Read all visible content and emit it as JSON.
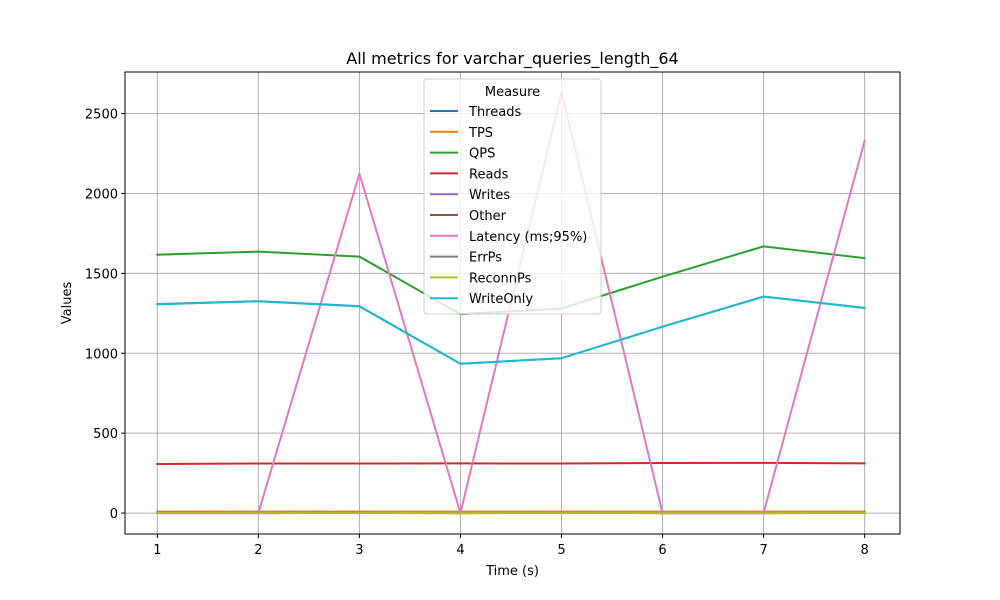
{
  "chart_data": {
    "type": "line",
    "title": "All metrics for varchar_queries_length_64",
    "xlabel": "Time (s)",
    "ylabel": "Values",
    "x": [
      1,
      2,
      3,
      4,
      5,
      6,
      7,
      8
    ],
    "xlim": [
      0.68,
      8.35
    ],
    "ylim": [
      -131,
      2760
    ],
    "xticks": [
      1,
      2,
      3,
      4,
      5,
      6,
      7,
      8
    ],
    "yticks": [
      0,
      500,
      1000,
      1500,
      2000,
      2500
    ],
    "grid": true,
    "legend": {
      "title": "Measure",
      "placement": "upper center"
    },
    "series": [
      {
        "name": "Threads",
        "color": "#1f77b4",
        "values": [
          8,
          8,
          8,
          8,
          8,
          8,
          8,
          8
        ]
      },
      {
        "name": "TPS",
        "color": "#ff7f0e",
        "values": [
          8,
          8,
          8,
          8,
          8,
          8,
          8,
          8
        ]
      },
      {
        "name": "QPS",
        "color": "#2ca02c",
        "values": [
          1617,
          1636,
          1605,
          1245,
          1280,
          1479,
          1669,
          1595
        ]
      },
      {
        "name": "Reads",
        "color": "#d62728",
        "values": [
          307,
          310,
          310,
          311,
          310,
          313,
          314,
          311
        ]
      },
      {
        "name": "Writes",
        "color": "#9467bd",
        "values": [
          1308,
          1326,
          1295,
          934,
          969,
          1166,
          1355,
          1284
        ]
      },
      {
        "name": "Other",
        "color": "#8c564b",
        "values": [
          3,
          1,
          2,
          0,
          1,
          0,
          0,
          1
        ]
      },
      {
        "name": "Latency (ms;95%)",
        "color": "#e377c2",
        "values": [
          0,
          0,
          2124,
          0,
          2633,
          0,
          0,
          2330
        ]
      },
      {
        "name": "ErrPs",
        "color": "#7f7f7f",
        "values": [
          2,
          0,
          1,
          0,
          1,
          0,
          0,
          1
        ]
      },
      {
        "name": "ReconnPs",
        "color": "#bcbd22",
        "values": [
          0,
          0,
          0,
          0,
          0,
          0,
          0,
          0
        ]
      },
      {
        "name": "WriteOnly",
        "color": "#17becf",
        "values": [
          1306,
          1325,
          1293,
          934,
          969,
          1166,
          1354,
          1283
        ]
      }
    ]
  }
}
